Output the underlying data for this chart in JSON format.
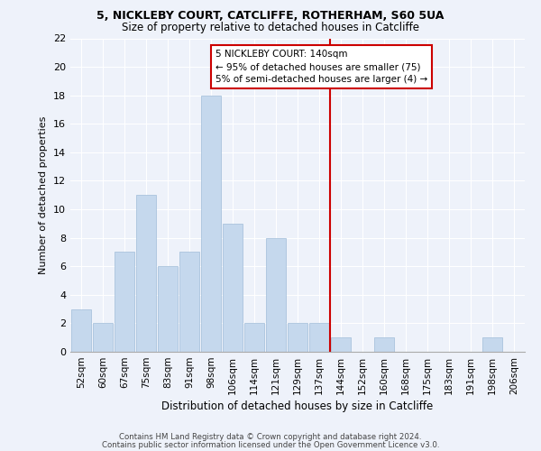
{
  "title_line1": "5, NICKLEBY COURT, CATCLIFFE, ROTHERHAM, S60 5UA",
  "title_line2": "Size of property relative to detached houses in Catcliffe",
  "xlabel": "Distribution of detached houses by size in Catcliffe",
  "ylabel": "Number of detached properties",
  "bar_labels": [
    "52sqm",
    "60sqm",
    "67sqm",
    "75sqm",
    "83sqm",
    "91sqm",
    "98sqm",
    "106sqm",
    "114sqm",
    "121sqm",
    "129sqm",
    "137sqm",
    "144sqm",
    "152sqm",
    "160sqm",
    "168sqm",
    "175sqm",
    "183sqm",
    "191sqm",
    "198sqm",
    "206sqm"
  ],
  "bar_values": [
    3,
    2,
    7,
    11,
    6,
    7,
    18,
    9,
    2,
    8,
    2,
    2,
    1,
    0,
    1,
    0,
    0,
    0,
    0,
    1,
    0
  ],
  "bar_color": "#c5d8ed",
  "bar_edge_color": "#a0bcd8",
  "subject_line_color": "#cc0000",
  "annotation_title": "5 NICKLEBY COURT: 140sqm",
  "annotation_line1": "← 95% of detached houses are smaller (75)",
  "annotation_line2": "5% of semi-detached houses are larger (4) →",
  "annotation_box_color": "#cc0000",
  "ylim": [
    0,
    22
  ],
  "yticks": [
    0,
    2,
    4,
    6,
    8,
    10,
    12,
    14,
    16,
    18,
    20,
    22
  ],
  "footer_line1": "Contains HM Land Registry data © Crown copyright and database right 2024.",
  "footer_line2": "Contains public sector information licensed under the Open Government Licence v3.0.",
  "bg_color": "#eef2fa",
  "plot_bg_color": "#eef2fa",
  "subject_bar_index": 11.5
}
